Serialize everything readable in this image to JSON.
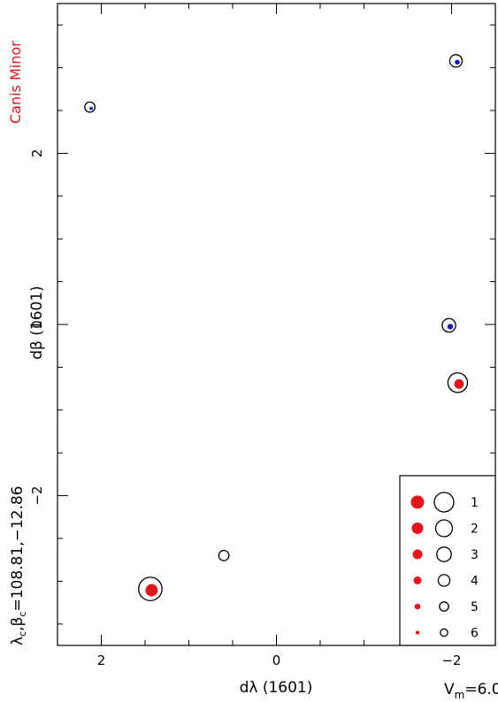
{
  "chart_data": {
    "type": "scatter",
    "constellation": "Canis Minor",
    "xlabel": "dλ (1601)",
    "ylabel": "dβ (1601)",
    "center_label": "λc,βc=108.81,−12.86",
    "center_label_parts": {
      "lam": "λ",
      "c1": "c",
      "sep": ",",
      "beta": "β",
      "c2": "c",
      "values": "=108.81,−12.86"
    },
    "vm_label_parts": {
      "v": "V",
      "sub": "m",
      "value": "=6.0"
    },
    "xlim": [
      2.5,
      -2.5
    ],
    "ylim": [
      -3.75,
      3.75
    ],
    "x_ticks": [
      2,
      0,
      -2
    ],
    "x_tick_labels": [
      "2",
      "0",
      "−2"
    ],
    "y_ticks": [
      2,
      0,
      -2
    ],
    "y_tick_labels": [
      "2",
      "0",
      "−2"
    ],
    "points": [
      {
        "x": 2.13,
        "y": 2.54,
        "mag": 5.6,
        "fill": "#1010c8"
      },
      {
        "x": -2.05,
        "y": 3.08,
        "mag": 5.2,
        "fill": "#1010c8"
      },
      {
        "x": -1.97,
        "y": -0.01,
        "mag": 5.0,
        "fill": "#1010c8"
      },
      {
        "x": -2.07,
        "y": -0.68,
        "mag": 3.9,
        "fill": "#e8141b"
      },
      {
        "x": 1.44,
        "y": -3.09,
        "mag": 3.2,
        "fill": "#e8141b"
      },
      {
        "x": 0.6,
        "y": -2.7,
        "mag": 5.6,
        "fill": "none"
      }
    ],
    "legend": {
      "position": "bottom-right",
      "entries": [
        "1",
        "2",
        "3",
        "4",
        "5",
        "6"
      ]
    },
    "colors": {
      "red": "#e8141b",
      "blue": "#1010c8"
    }
  }
}
